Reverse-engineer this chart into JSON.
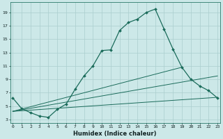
{
  "xlabel": "Humidex (Indice chaleur)",
  "bg_color": "#cce8e8",
  "line_color": "#1a6b5a",
  "grid_color": "#aacece",
  "yticks": [
    3,
    5,
    7,
    9,
    11,
    13,
    15,
    17,
    19
  ],
  "xtick_vals": [
    0,
    1,
    2,
    3,
    4,
    5,
    6,
    7,
    8,
    9,
    10,
    11,
    12,
    13,
    14,
    15,
    16,
    17,
    18,
    19,
    20,
    21,
    22,
    23
  ],
  "xtick_labels": [
    "0",
    "1",
    "2",
    "3",
    "4",
    "5",
    "6",
    "7",
    "8",
    "9",
    "10",
    "11",
    "12",
    "13",
    "14",
    "15",
    "16",
    "17",
    "18",
    "19",
    "20",
    "21",
    "22",
    "23"
  ],
  "xlim": [
    -0.3,
    23.3
  ],
  "ylim": [
    2.5,
    20.5
  ],
  "curve_x": [
    0,
    1,
    2,
    3,
    4,
    5,
    6,
    7,
    8,
    9,
    10,
    11,
    12,
    13,
    14,
    15,
    16,
    17,
    18,
    19,
    20,
    21,
    22,
    23
  ],
  "curve_y": [
    6.2,
    4.6,
    4.0,
    3.5,
    3.3,
    4.5,
    5.3,
    7.5,
    9.5,
    11.0,
    13.3,
    13.4,
    16.3,
    17.5,
    18.0,
    19.0,
    19.5,
    16.5,
    13.5,
    10.8,
    9.0,
    8.0,
    7.3,
    6.2
  ],
  "line_fan": [
    {
      "x": [
        0,
        23
      ],
      "y": [
        4.2,
        6.3
      ]
    },
    {
      "x": [
        0,
        23
      ],
      "y": [
        4.2,
        9.5
      ]
    },
    {
      "x": [
        0,
        19
      ],
      "y": [
        4.2,
        10.8
      ]
    }
  ],
  "xlabel_fontsize": 6,
  "tick_fontsize": 4.5,
  "marker": "D",
  "markersize": 2.0,
  "linewidth": 0.9
}
